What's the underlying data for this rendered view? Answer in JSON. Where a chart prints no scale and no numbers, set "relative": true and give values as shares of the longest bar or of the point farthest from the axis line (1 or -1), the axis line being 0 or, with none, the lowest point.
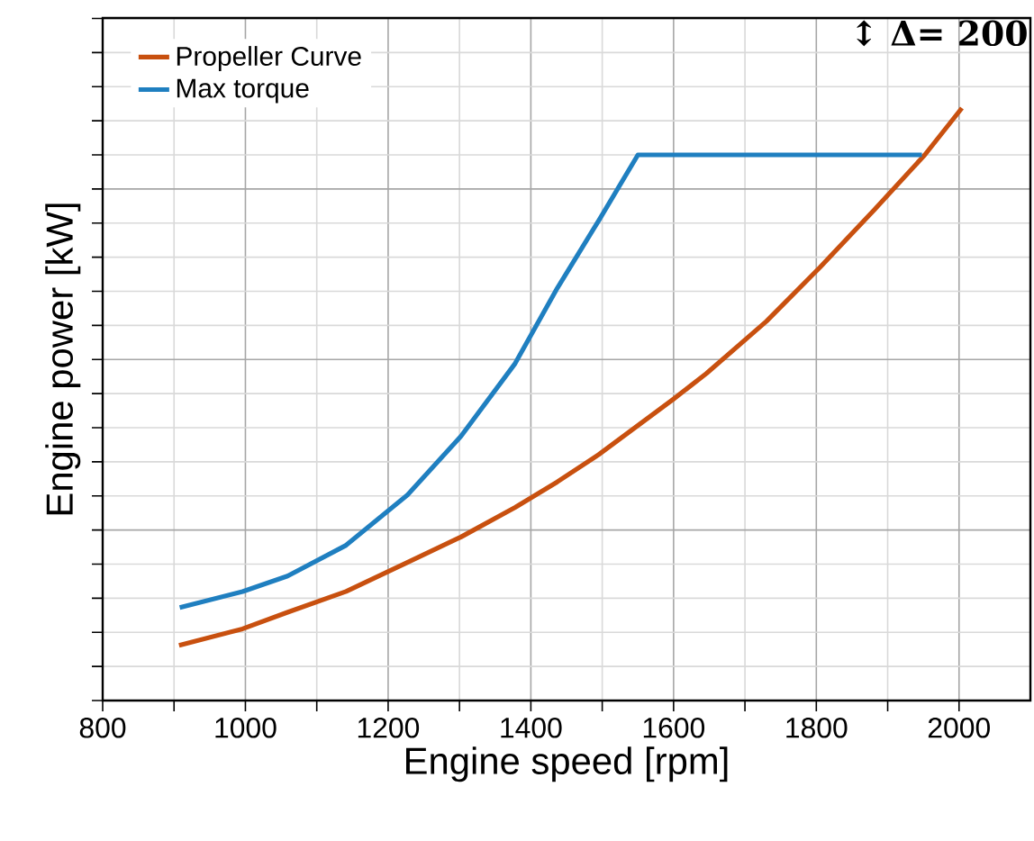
{
  "chart_data": {
    "type": "line",
    "xlabel": "Engine speed [rpm]",
    "ylabel": "Engine power [kW]",
    "relative": true,
    "xlim": [
      800,
      2100
    ],
    "xticks": [
      800,
      1000,
      1200,
      1400,
      1600,
      1800,
      2000
    ],
    "grid": true,
    "legend": "top left",
    "marker": "none",
    "line_style": "solid",
    "annotations": [
      "↕ Δ= 200"
    ],
    "series": [
      {
        "name": "Propeller Curve",
        "color": "#c8500f",
        "x": [
          907,
          996,
          1059,
          1141,
          1227,
          1302,
          1378,
          1437,
          1495,
          1600,
          1646,
          1730,
          1805,
          1881,
          1952,
          2004
        ],
        "values": [
          0.093,
          0.121,
          0.149,
          0.184,
          0.233,
          0.276,
          0.326,
          0.369,
          0.415,
          0.509,
          0.552,
          0.64,
          0.731,
          0.828,
          0.921,
          1
        ]
      },
      {
        "name": "Max torque",
        "color": "#1f7fc0",
        "x": [
          908,
          996,
          1059,
          1141,
          1227,
          1302,
          1378,
          1437,
          1495,
          1550,
          1948
        ],
        "values": [
          0.157,
          0.184,
          0.21,
          0.262,
          0.347,
          0.446,
          0.569,
          0.696,
          0.81,
          0.921,
          0.921
        ]
      }
    ]
  }
}
